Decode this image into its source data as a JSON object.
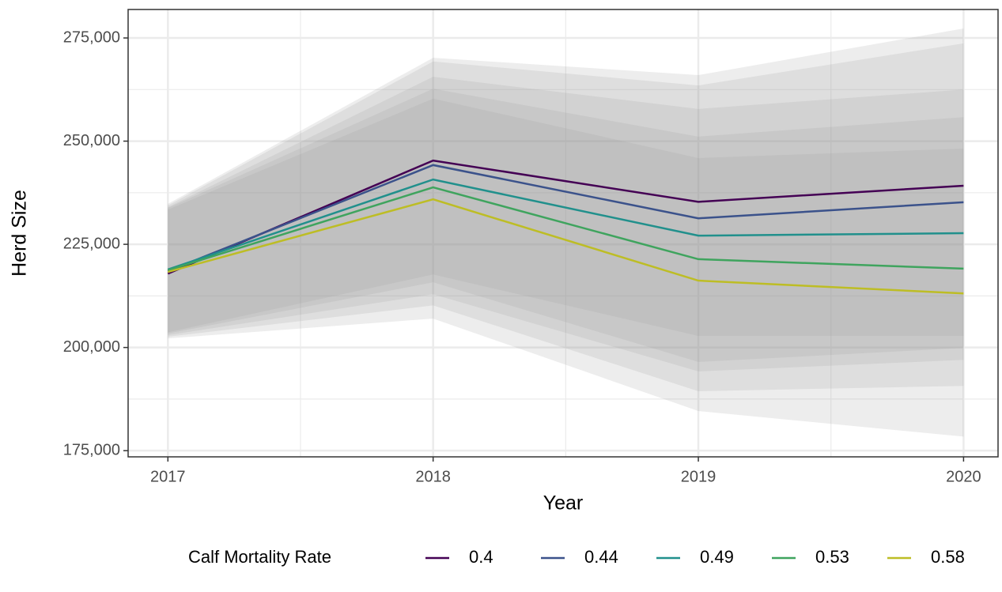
{
  "chart_data": {
    "type": "line",
    "x_label": "Year",
    "y_label": "Herd Size",
    "x": [
      2017,
      2018,
      2019,
      2020
    ],
    "legend_title": "Calf Mortality Rate",
    "series": [
      {
        "name": "0.4",
        "color": "#440154",
        "values": [
          217900,
          245300,
          235300,
          239200
        ],
        "lower": [
          203700,
          217700,
          202800,
          202800
        ],
        "upper": [
          234800,
          270200,
          266000,
          277300
        ]
      },
      {
        "name": "0.44",
        "color": "#3b528b",
        "values": [
          218500,
          244200,
          231300,
          235200
        ],
        "lower": [
          203400,
          215800,
          196500,
          199900
        ],
        "upper": [
          234400,
          269300,
          263500,
          273700
        ]
      },
      {
        "name": "0.49",
        "color": "#21908c",
        "values": [
          218900,
          240700,
          227100,
          227700
        ],
        "lower": [
          203000,
          212900,
          194200,
          197000
        ],
        "upper": [
          234000,
          265600,
          257800,
          262500
        ]
      },
      {
        "name": "0.53",
        "color": "#3fa45e",
        "values": [
          218700,
          238800,
          221400,
          219100
        ],
        "lower": [
          202600,
          210200,
          189400,
          190700
        ],
        "upper": [
          233800,
          262700,
          251100,
          255800
        ]
      },
      {
        "name": "0.58",
        "color": "#bdbd25",
        "values": [
          218300,
          235900,
          216200,
          213100
        ],
        "lower": [
          202200,
          207000,
          184600,
          178400
        ],
        "upper": [
          233400,
          260300,
          245900,
          248200
        ]
      }
    ],
    "xlim": [
      2016.85,
      2020.13
    ],
    "xticks": [
      2017,
      2018,
      2019,
      2020
    ],
    "x_minor_ticks": [
      2017.5,
      2018.5,
      2019.5
    ],
    "ylim": [
      173500,
      281900
    ],
    "yticks": [
      {
        "value": 175000,
        "label": "175,000"
      },
      {
        "value": 200000,
        "label": "200,000"
      },
      {
        "value": 225000,
        "label": "225,000"
      },
      {
        "value": 250000,
        "label": "250,000"
      },
      {
        "value": 275000,
        "label": "275,000"
      }
    ],
    "y_minor_ticks": [
      187500,
      212500,
      237500,
      262500
    ],
    "grid": true,
    "legend_position": "bottom"
  }
}
